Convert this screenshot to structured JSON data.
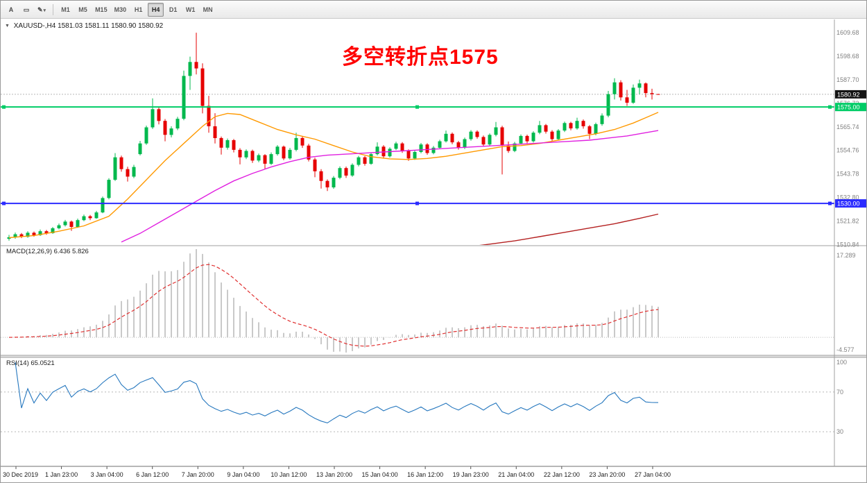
{
  "toolbar": {
    "buttons": [
      {
        "name": "text-tool",
        "icon": "letter-a-icon",
        "glyph": "A"
      },
      {
        "name": "objects-tool",
        "icon": "rectangle-icon",
        "glyph": "▭"
      },
      {
        "name": "draw-tools",
        "icon": "pencil-icon",
        "glyph": "✎",
        "caret": "▾"
      }
    ],
    "timeframes": [
      "M1",
      "M5",
      "M15",
      "M30",
      "H1",
      "H4",
      "D1",
      "W1",
      "MN"
    ],
    "active_timeframe": "H4"
  },
  "panes": {
    "menu_arrow": "▼",
    "main_label": "XAUUSD-,H4  1581.03 1581.11 1580.90 1580.92",
    "macd_label": "MACD(12,26,9) 6.436 5.826",
    "rsi_label": "RSI(14) 65.0521"
  },
  "annotation": {
    "text": "多空转折点1575",
    "color": "#ff0000"
  },
  "chart_data": {
    "type": "candlestick",
    "title": "XAUUSD- H4",
    "symbol": "XAUUSD-",
    "timeframe": "H4",
    "ohlc_current": {
      "open": 1581.03,
      "high": 1581.11,
      "low": 1580.9,
      "close": 1580.92
    },
    "bid_price": 1580.92,
    "horizontal_lines": [
      {
        "price": 1575.0,
        "label": "1575.00",
        "color": "#00cc66"
      },
      {
        "price": 1530.0,
        "label": "1530.00",
        "color": "#2b2bff"
      }
    ],
    "y_axis": {
      "min": 1510.6,
      "max": 1614.9,
      "ticks": [
        "1609.68",
        "1598.68",
        "1587.70",
        "1576.72",
        "1565.74",
        "1554.76",
        "1543.78",
        "1532.80",
        "1521.82",
        "1510.84"
      ]
    },
    "x_labels": [
      "30 Dec 2019",
      "1 Jan 23:00",
      "3 Jan 04:00",
      "6 Jan 12:00",
      "7 Jan 20:00",
      "9 Jan 04:00",
      "10 Jan 12:00",
      "13 Jan 20:00",
      "15 Jan 04:00",
      "16 Jan 12:00",
      "19 Jan 23:00",
      "21 Jan 04:00",
      "22 Jan 12:00",
      "23 Jan 20:00",
      "27 Jan 04:00"
    ],
    "ohlc": [
      [
        1513.5,
        1515.3,
        1512.6,
        1514.2
      ],
      [
        1514.2,
        1516.4,
        1513.5,
        1515.6
      ],
      [
        1515.6,
        1516.2,
        1513.8,
        1514.4
      ],
      [
        1514.4,
        1517.0,
        1514.0,
        1516.3
      ],
      [
        1516.3,
        1516.9,
        1514.5,
        1515.2
      ],
      [
        1515.2,
        1517.8,
        1514.8,
        1517.0
      ],
      [
        1517.0,
        1517.6,
        1515.4,
        1516.1
      ],
      [
        1516.1,
        1519.0,
        1515.8,
        1518.4
      ],
      [
        1518.4,
        1520.6,
        1517.9,
        1519.8
      ],
      [
        1519.8,
        1522.3,
        1519.2,
        1521.5
      ],
      [
        1521.5,
        1522.0,
        1517.2,
        1519.0
      ],
      [
        1519.0,
        1522.9,
        1518.6,
        1522.2
      ],
      [
        1522.2,
        1524.8,
        1521.7,
        1524.0
      ],
      [
        1524.0,
        1524.6,
        1522.2,
        1523.1
      ],
      [
        1523.1,
        1526.5,
        1522.8,
        1525.8
      ],
      [
        1525.8,
        1533.2,
        1525.4,
        1532.5
      ],
      [
        1532.5,
        1541.8,
        1531.9,
        1541.0
      ],
      [
        1541.0,
        1553.5,
        1540.5,
        1551.5
      ],
      [
        1551.5,
        1552.3,
        1544.8,
        1546.0
      ],
      [
        1546.0,
        1547.1,
        1540.2,
        1542.5
      ],
      [
        1542.5,
        1548.0,
        1541.8,
        1547.0
      ],
      [
        1553.0,
        1559.2,
        1552.4,
        1558.0
      ],
      [
        1558.0,
        1566.3,
        1557.3,
        1565.5
      ],
      [
        1565.5,
        1579.0,
        1564.8,
        1574.0
      ],
      [
        1574.0,
        1574.8,
        1566.9,
        1568.5
      ],
      [
        1568.5,
        1569.4,
        1559.0,
        1562.0
      ],
      [
        1562.0,
        1566.0,
        1560.8,
        1565.0
      ],
      [
        1565.0,
        1570.4,
        1564.2,
        1569.5
      ],
      [
        1569.5,
        1592.0,
        1568.8,
        1589.5
      ],
      [
        1589.5,
        1598.5,
        1583.0,
        1596.0
      ],
      [
        1596.0,
        1609.7,
        1590.2,
        1593.0
      ],
      [
        1593.0,
        1595.4,
        1572.0,
        1575.5
      ],
      [
        1575.5,
        1580.2,
        1563.0,
        1566.0
      ],
      [
        1566.0,
        1572.1,
        1558.0,
        1560.5
      ],
      [
        1560.5,
        1561.2,
        1552.8,
        1556.0
      ],
      [
        1556.0,
        1560.3,
        1555.1,
        1559.5
      ],
      [
        1559.5,
        1560.1,
        1553.8,
        1555.0
      ],
      [
        1555.0,
        1555.8,
        1548.2,
        1551.5
      ],
      [
        1551.5,
        1555.2,
        1550.7,
        1554.5
      ],
      [
        1554.5,
        1555.1,
        1548.9,
        1550.0
      ],
      [
        1550.0,
        1553.3,
        1549.2,
        1552.5
      ],
      [
        1552.5,
        1553.0,
        1546.1,
        1548.5
      ],
      [
        1548.5,
        1553.8,
        1547.9,
        1553.0
      ],
      [
        1553.0,
        1557.2,
        1552.3,
        1556.5
      ],
      [
        1556.5,
        1557.0,
        1550.2,
        1551.0
      ],
      [
        1551.0,
        1555.9,
        1550.4,
        1555.0
      ],
      [
        1555.0,
        1563.0,
        1554.3,
        1560.5
      ],
      [
        1560.5,
        1561.2,
        1555.9,
        1557.0
      ],
      [
        1557.0,
        1557.8,
        1549.6,
        1550.5
      ],
      [
        1550.5,
        1551.3,
        1542.2,
        1545.0
      ],
      [
        1545.0,
        1546.0,
        1536.9,
        1540.5
      ],
      [
        1540.5,
        1541.2,
        1535.8,
        1537.5
      ],
      [
        1537.5,
        1542.8,
        1536.8,
        1542.0
      ],
      [
        1542.0,
        1547.3,
        1541.3,
        1546.5
      ],
      [
        1546.5,
        1547.2,
        1541.9,
        1543.0
      ],
      [
        1543.0,
        1548.7,
        1542.4,
        1548.0
      ],
      [
        1548.0,
        1552.2,
        1547.3,
        1551.5
      ],
      [
        1551.5,
        1552.1,
        1547.6,
        1548.5
      ],
      [
        1548.5,
        1553.8,
        1548.0,
        1553.0
      ],
      [
        1553.0,
        1558.5,
        1552.4,
        1556.5
      ],
      [
        1556.5,
        1557.2,
        1550.9,
        1552.0
      ],
      [
        1552.0,
        1556.2,
        1551.4,
        1555.5
      ],
      [
        1555.5,
        1558.8,
        1554.9,
        1558.0
      ],
      [
        1558.0,
        1558.6,
        1553.6,
        1554.5
      ],
      [
        1554.5,
        1555.2,
        1549.9,
        1551.0
      ],
      [
        1551.0,
        1554.7,
        1550.3,
        1554.0
      ],
      [
        1554.0,
        1558.2,
        1553.4,
        1557.5
      ],
      [
        1557.5,
        1558.1,
        1552.7,
        1553.5
      ],
      [
        1553.5,
        1556.8,
        1552.9,
        1556.0
      ],
      [
        1556.0,
        1559.7,
        1555.3,
        1559.0
      ],
      [
        1559.0,
        1564.0,
        1558.4,
        1562.5
      ],
      [
        1562.5,
        1563.1,
        1557.6,
        1558.5
      ],
      [
        1558.5,
        1559.2,
        1555.1,
        1556.0
      ],
      [
        1556.0,
        1560.7,
        1555.4,
        1560.0
      ],
      [
        1560.0,
        1564.2,
        1559.3,
        1563.5
      ],
      [
        1563.5,
        1564.1,
        1560.2,
        1561.0
      ],
      [
        1561.0,
        1561.7,
        1556.6,
        1557.5
      ],
      [
        1557.5,
        1562.7,
        1556.9,
        1562.0
      ],
      [
        1562.0,
        1568.0,
        1561.3,
        1565.5
      ],
      [
        1565.5,
        1566.2,
        1543.5,
        1557.0
      ],
      [
        1557.0,
        1558.9,
        1553.6,
        1554.5
      ],
      [
        1554.5,
        1558.7,
        1553.9,
        1558.0
      ],
      [
        1558.0,
        1562.2,
        1557.4,
        1561.5
      ],
      [
        1561.5,
        1562.1,
        1558.1,
        1559.0
      ],
      [
        1559.0,
        1563.7,
        1558.4,
        1563.0
      ],
      [
        1563.0,
        1568.5,
        1562.3,
        1566.5
      ],
      [
        1566.5,
        1567.1,
        1562.6,
        1563.5
      ],
      [
        1563.5,
        1564.2,
        1558.9,
        1560.0
      ],
      [
        1560.0,
        1564.7,
        1559.4,
        1564.0
      ],
      [
        1564.0,
        1568.2,
        1563.3,
        1567.5
      ],
      [
        1567.5,
        1568.1,
        1564.1,
        1565.0
      ],
      [
        1565.0,
        1570.0,
        1564.4,
        1568.5
      ],
      [
        1568.5,
        1569.2,
        1564.9,
        1566.0
      ],
      [
        1566.0,
        1566.6,
        1560.0,
        1562.5
      ],
      [
        1562.5,
        1567.7,
        1561.8,
        1567.0
      ],
      [
        1567.0,
        1572.0,
        1566.2,
        1571.0
      ],
      [
        1571.0,
        1582.5,
        1570.2,
        1581.0
      ],
      [
        1581.0,
        1588.4,
        1578.5,
        1586.5
      ],
      [
        1586.5,
        1587.5,
        1578.0,
        1579.5
      ],
      [
        1579.5,
        1583.0,
        1575.5,
        1577.0
      ],
      [
        1577.0,
        1585.5,
        1576.5,
        1584.0
      ],
      [
        1584.0,
        1587.8,
        1581.0,
        1586.0
      ],
      [
        1586.0,
        1586.5,
        1579.5,
        1581.5
      ],
      [
        1581.5,
        1583.5,
        1578.5,
        1581.03
      ],
      [
        1581.03,
        1581.11,
        1580.9,
        1580.92
      ]
    ],
    "moving_averages": [
      {
        "name": "ma-fast-orange",
        "color": "#ff9900",
        "points": [
          [
            0,
            1514
          ],
          [
            4,
            1515
          ],
          [
            8,
            1517
          ],
          [
            12,
            1519.5
          ],
          [
            16,
            1524
          ],
          [
            19,
            1532
          ],
          [
            22,
            1541
          ],
          [
            25,
            1550
          ],
          [
            28,
            1558
          ],
          [
            31,
            1566
          ],
          [
            33,
            1570.5
          ],
          [
            35,
            1572
          ],
          [
            37,
            1571.5
          ],
          [
            40,
            1568
          ],
          [
            43,
            1564.5
          ],
          [
            46,
            1562
          ],
          [
            49,
            1560
          ],
          [
            52,
            1557
          ],
          [
            55,
            1554
          ],
          [
            58,
            1551.8
          ],
          [
            61,
            1550.8
          ],
          [
            64,
            1550.5
          ],
          [
            67,
            1551
          ],
          [
            70,
            1552
          ],
          [
            73,
            1553.5
          ],
          [
            76,
            1555
          ],
          [
            79,
            1556.5
          ],
          [
            82,
            1557
          ],
          [
            85,
            1558
          ],
          [
            88,
            1559.5
          ],
          [
            91,
            1561
          ],
          [
            94,
            1562.5
          ],
          [
            97,
            1564.5
          ],
          [
            100,
            1567.5
          ],
          [
            102,
            1570
          ],
          [
            104,
            1572.5
          ]
        ]
      },
      {
        "name": "ma-mid-magenta",
        "color": "#e020e0",
        "points": [
          [
            18,
            1512
          ],
          [
            21,
            1516
          ],
          [
            24,
            1521
          ],
          [
            27,
            1526
          ],
          [
            30,
            1531
          ],
          [
            33,
            1536
          ],
          [
            36,
            1540.5
          ],
          [
            39,
            1544
          ],
          [
            42,
            1547
          ],
          [
            45,
            1549.5
          ],
          [
            48,
            1551.5
          ],
          [
            51,
            1552.5
          ],
          [
            54,
            1553
          ],
          [
            57,
            1553.5
          ],
          [
            60,
            1554
          ],
          [
            63,
            1554.5
          ],
          [
            66,
            1555
          ],
          [
            69,
            1555.5
          ],
          [
            72,
            1556
          ],
          [
            75,
            1556.5
          ],
          [
            78,
            1557
          ],
          [
            81,
            1557.5
          ],
          [
            84,
            1558
          ],
          [
            87,
            1558.5
          ],
          [
            90,
            1559
          ],
          [
            93,
            1559.5
          ],
          [
            96,
            1560.5
          ],
          [
            99,
            1561.5
          ],
          [
            102,
            1563
          ],
          [
            104,
            1564
          ]
        ]
      },
      {
        "name": "ma-slow-darkred",
        "color": "#b42020",
        "points": [
          [
            73,
            1509.5
          ],
          [
            77,
            1511
          ],
          [
            81,
            1512.5
          ],
          [
            85,
            1514.5
          ],
          [
            89,
            1516.5
          ],
          [
            93,
            1518.5
          ],
          [
            97,
            1520.5
          ],
          [
            101,
            1523
          ],
          [
            104,
            1525
          ]
        ]
      }
    ],
    "indicators": {
      "macd": {
        "params": [
          12,
          26,
          9
        ],
        "values": [
          6.436,
          5.826
        ],
        "axis_ticks": [
          "17.289",
          "-4.577"
        ],
        "histogram_color": "#c9c9c9",
        "signal_color": "#e03030"
      },
      "rsi": {
        "period": 14,
        "value": 65.0521,
        "levels": [
          100,
          70,
          30
        ],
        "line_color": "#2577be"
      }
    },
    "colors": {
      "up": "#00b84d",
      "down": "#e60000",
      "bid_line": "#b8b8b8"
    }
  }
}
